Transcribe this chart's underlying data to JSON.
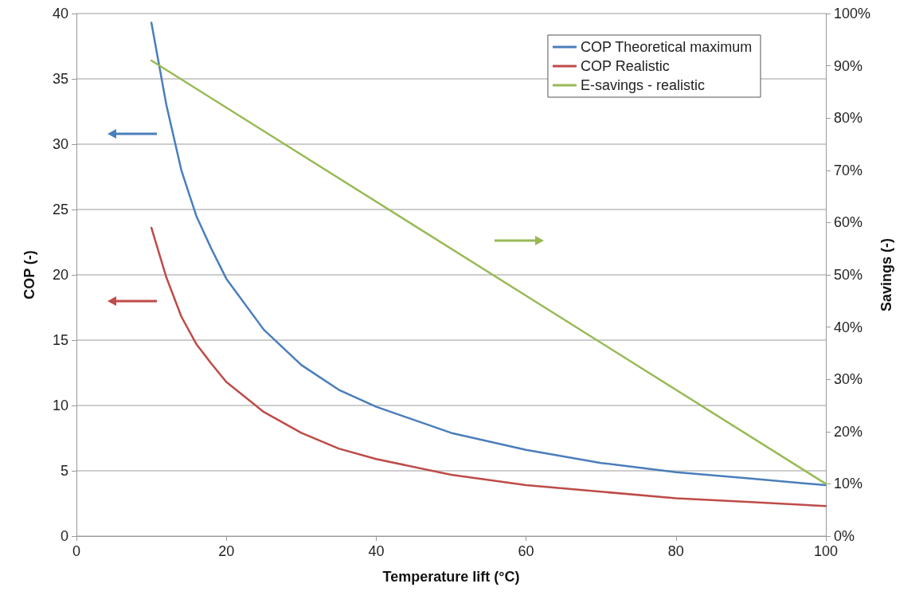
{
  "chart_data": {
    "type": "line",
    "xlabel": "Temperature lift (°C)",
    "ylabel": "COP (-)",
    "y2label": "Savings (-)",
    "xlim": [
      0,
      100
    ],
    "xticks": [
      0,
      20,
      40,
      60,
      80,
      100
    ],
    "ylim": [
      0,
      40
    ],
    "yticks": [
      0,
      5,
      10,
      15,
      20,
      25,
      30,
      35,
      40
    ],
    "y2lim": [
      0,
      100
    ],
    "y2ticks": [
      {
        "value": 0,
        "label": "0%"
      },
      {
        "value": 10,
        "label": "10%"
      },
      {
        "value": 20,
        "label": "20%"
      },
      {
        "value": 30,
        "label": "30%"
      },
      {
        "value": 40,
        "label": "40%"
      },
      {
        "value": 50,
        "label": "50%"
      },
      {
        "value": 60,
        "label": "60%"
      },
      {
        "value": 70,
        "label": "70%"
      },
      {
        "value": 80,
        "label": "80%"
      },
      {
        "value": 90,
        "label": "90%"
      },
      {
        "value": 100,
        "label": "100%"
      }
    ],
    "grid": "y",
    "legend": "top right",
    "marker": "none",
    "line_style": "solid",
    "series": [
      {
        "name": "COP Theoretical maximum",
        "color": "#4a7ebb",
        "x": [
          10,
          12,
          14,
          16,
          18,
          20,
          25,
          30,
          35,
          40,
          50,
          60,
          70,
          80,
          90,
          100
        ],
        "values": [
          39.3,
          33,
          28,
          24.5,
          22,
          19.7,
          15.8,
          13.1,
          11.2,
          9.9,
          7.9,
          6.6,
          5.6,
          4.9,
          4.4,
          3.9
        ]
      },
      {
        "name": "COP Realistic",
        "color": "#be4b48",
        "x": [
          10,
          12,
          14,
          16,
          18,
          20,
          25,
          30,
          35,
          40,
          50,
          60,
          70,
          80,
          90,
          100
        ],
        "values": [
          23.6,
          19.8,
          16.8,
          14.7,
          13.2,
          11.8,
          9.5,
          7.9,
          6.7,
          5.9,
          4.7,
          3.9,
          3.4,
          2.9,
          2.6,
          2.3
        ]
      },
      {
        "name": "E-savings - realistic",
        "color": "#98b954",
        "axis": "y2",
        "x": [
          10,
          100
        ],
        "values": [
          91,
          10
        ]
      }
    ]
  }
}
